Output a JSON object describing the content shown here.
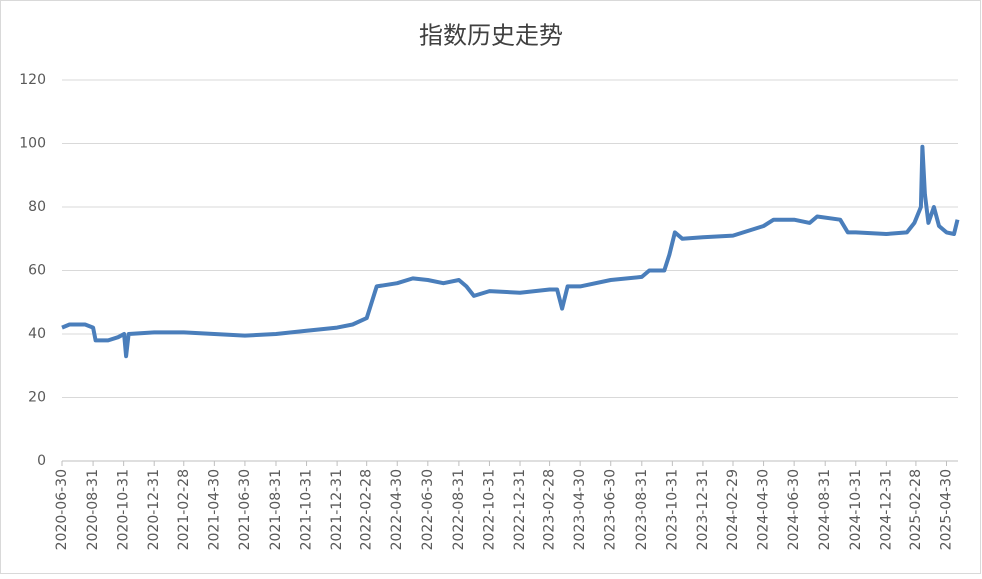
{
  "chart_data": {
    "type": "line",
    "title": "指数历史走势",
    "x": [
      "2020-06-30",
      "2020-07-15",
      "2020-08-15",
      "2020-08-31",
      "2020-09-05",
      "2020-09-30",
      "2020-10-20",
      "2020-11-01",
      "2020-11-05",
      "2020-11-10",
      "2020-12-31",
      "2021-02-28",
      "2021-04-30",
      "2021-06-30",
      "2021-08-31",
      "2021-10-31",
      "2021-12-31",
      "2022-01-31",
      "2022-02-28",
      "2022-03-10",
      "2022-03-20",
      "2022-04-30",
      "2022-05-31",
      "2022-06-30",
      "2022-07-31",
      "2022-08-31",
      "2022-09-15",
      "2022-09-30",
      "2022-10-31",
      "2022-12-31",
      "2023-02-28",
      "2023-03-15",
      "2023-03-25",
      "2023-04-05",
      "2023-04-30",
      "2023-06-30",
      "2023-08-31",
      "2023-09-15",
      "2023-10-15",
      "2023-10-25",
      "2023-11-05",
      "2023-11-20",
      "2023-12-31",
      "2024-02-29",
      "2024-04-30",
      "2024-05-20",
      "2024-06-30",
      "2024-07-31",
      "2024-08-15",
      "2024-09-30",
      "2024-10-15",
      "2024-10-31",
      "2024-12-31",
      "2025-02-10",
      "2025-02-25",
      "2025-03-10",
      "2025-03-13",
      "2025-03-18",
      "2025-03-25",
      "2025-04-05",
      "2025-04-15",
      "2025-04-30",
      "2025-05-15",
      "2025-05-22"
    ],
    "series": [
      {
        "name": "指数",
        "color": "#4a7ebb",
        "values": [
          42,
          43,
          43,
          42,
          38,
          38,
          39,
          40,
          33,
          40,
          40.5,
          40.5,
          40,
          39.5,
          40,
          41,
          42,
          43,
          45,
          50,
          55,
          56,
          57.5,
          57,
          56,
          57,
          55,
          52,
          53.5,
          53,
          54,
          54,
          48,
          55,
          55,
          57,
          58,
          60,
          60,
          65,
          72,
          70,
          70.5,
          71,
          74,
          76,
          76,
          75,
          77,
          76,
          72,
          72,
          71.5,
          72,
          75,
          80,
          99,
          84,
          75,
          80,
          74,
          72,
          71.5,
          76
        ]
      }
    ],
    "xlim": [
      "2020-06-30",
      "2025-05-23"
    ],
    "xticks": [
      "2020-06-30",
      "2020-08-31",
      "2020-10-31",
      "2020-12-31",
      "2021-02-28",
      "2021-04-30",
      "2021-06-30",
      "2021-08-31",
      "2021-10-31",
      "2021-12-31",
      "2022-02-28",
      "2022-04-30",
      "2022-06-30",
      "2022-08-31",
      "2022-10-31",
      "2022-12-31",
      "2023-02-28",
      "2023-04-30",
      "2023-06-30",
      "2023-08-31",
      "2023-10-31",
      "2023-12-31",
      "2024-02-29",
      "2024-04-30",
      "2024-06-30",
      "2024-08-31",
      "2024-10-31",
      "2024-12-31",
      "2025-02-28",
      "2025-04-30"
    ],
    "ylim": [
      0,
      120
    ],
    "yticks": [
      0,
      20,
      40,
      60,
      80,
      100,
      120
    ],
    "grid": true
  }
}
